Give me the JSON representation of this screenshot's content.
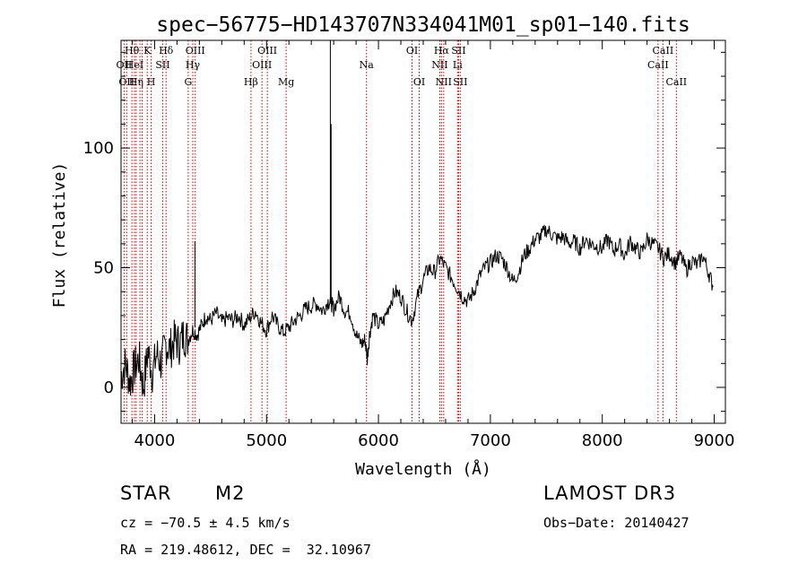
{
  "chart_data": {
    "type": "line",
    "title": "spec−56775−HD143707N334041M01_sp01−140.fits",
    "xlabel": "Wavelength (Å)",
    "ylabel": "Flux (relative)",
    "xlim": [
      3700,
      9100
    ],
    "ylim": [
      -15,
      145
    ],
    "xticks": [
      4000,
      5000,
      6000,
      7000,
      8000,
      9000
    ],
    "yticks": [
      0,
      50,
      100
    ],
    "grid": false,
    "legend": "none",
    "line_color": "#000000",
    "marker_color": "#c00000",
    "series": [
      {
        "x": [
          3700,
          3740,
          3780,
          3820,
          3860,
          3900,
          3940,
          3980,
          4020,
          4060,
          4100,
          4140,
          4180,
          4220,
          4260,
          4300,
          4340,
          4380,
          4420,
          4460,
          4500,
          4550,
          4600,
          4650,
          4700,
          4750,
          4800,
          4850,
          4900,
          4950,
          5000,
          5050,
          5100,
          5150,
          5200,
          5250,
          5300,
          5350,
          5400,
          5450,
          5500,
          5550,
          5580,
          5600,
          5650,
          5700,
          5750,
          5800,
          5850,
          5880,
          5900,
          5920,
          5950,
          6000,
          6050,
          6100,
          6150,
          6200,
          6250,
          6300,
          6350,
          6400,
          6450,
          6500,
          6550,
          6600,
          6650,
          6700,
          6750,
          6800,
          6850,
          6900,
          6950,
          7000,
          7050,
          7100,
          7150,
          7200,
          7250,
          7300,
          7350,
          7400,
          7450,
          7500,
          7550,
          7600,
          7650,
          7700,
          7750,
          7800,
          7850,
          7900,
          7950,
          8000,
          8050,
          8100,
          8150,
          8200,
          8250,
          8300,
          8350,
          8400,
          8450,
          8500,
          8550,
          8600,
          8650,
          8700,
          8750,
          8800,
          8850,
          8900,
          8950,
          8990
        ],
        "y": [
          5,
          10,
          2,
          8,
          12,
          0,
          15,
          6,
          14,
          10,
          18,
          16,
          20,
          18,
          22,
          20,
          24,
          22,
          26,
          30,
          28,
          31,
          27,
          29,
          28,
          30,
          26,
          29,
          32,
          27,
          24,
          30,
          26,
          23,
          25,
          28,
          30,
          33,
          34,
          35,
          32,
          36,
          35,
          33,
          38,
          32,
          31,
          22,
          18,
          20,
          12,
          22,
          30,
          26,
          28,
          35,
          40,
          38,
          32,
          28,
          38,
          45,
          50,
          48,
          54,
          50,
          46,
          42,
          38,
          36,
          40,
          46,
          50,
          52,
          55,
          54,
          50,
          44,
          48,
          55,
          58,
          62,
          63,
          66,
          64,
          62,
          63,
          60,
          61,
          58,
          62,
          60,
          59,
          58,
          62,
          57,
          60,
          55,
          61,
          58,
          56,
          62,
          60,
          58,
          54,
          56,
          52,
          55,
          49,
          53,
          51,
          55,
          48,
          42
        ]
      }
    ],
    "line_markers": [
      {
        "wl": 3727,
        "label": "OII",
        "row": 2
      },
      {
        "wl": 3750,
        "label": "OII",
        "row": 3
      },
      {
        "wl": 3797,
        "label": "Hθ",
        "row": 1
      },
      {
        "wl": 3820,
        "label": "HeI",
        "row": 2
      },
      {
        "wl": 3835,
        "label": "Hη",
        "row": 3
      },
      {
        "wl": 3869,
        "label": "",
        "row": 0
      },
      {
        "wl": 3889,
        "label": "",
        "row": 0
      },
      {
        "wl": 3934,
        "label": "K",
        "row": 1
      },
      {
        "wl": 3969,
        "label": "H",
        "row": 3
      },
      {
        "wl": 4072,
        "label": "SII",
        "row": 2
      },
      {
        "wl": 4102,
        "label": "Hδ",
        "row": 1
      },
      {
        "wl": 4300,
        "label": "G",
        "row": 3
      },
      {
        "wl": 4341,
        "label": "Hγ",
        "row": 2
      },
      {
        "wl": 4363,
        "label": "OIII",
        "row": 1
      },
      {
        "wl": 4861,
        "label": "Hβ",
        "row": 3
      },
      {
        "wl": 4959,
        "label": "OIII",
        "row": 2
      },
      {
        "wl": 5007,
        "label": "OIII",
        "row": 1
      },
      {
        "wl": 5175,
        "label": "Mg",
        "row": 3
      },
      {
        "wl": 5893,
        "label": "Na",
        "row": 2
      },
      {
        "wl": 6300,
        "label": "OI",
        "row": 1
      },
      {
        "wl": 6364,
        "label": "OI",
        "row": 3
      },
      {
        "wl": 6548,
        "label": "NII",
        "row": 2
      },
      {
        "wl": 6563,
        "label": "Hα",
        "row": 1
      },
      {
        "wl": 6583,
        "label": "NII",
        "row": 3
      },
      {
        "wl": 6707,
        "label": "Li",
        "row": 2
      },
      {
        "wl": 6716,
        "label": "SII",
        "row": 1
      },
      {
        "wl": 6731,
        "label": "SII",
        "row": 3
      },
      {
        "wl": 8498,
        "label": "CaII",
        "row": 2
      },
      {
        "wl": 8542,
        "label": "CaII",
        "row": 1
      },
      {
        "wl": 8662,
        "label": "CaII",
        "row": 3
      }
    ]
  },
  "info": {
    "object_class": "STAR",
    "subclass": "M2",
    "survey": "LAMOST DR3",
    "redshift": "cz = −70.5 ± 4.5 km/s",
    "obs_date": "Obs−Date: 20140427",
    "coords": "RA = 219.48612, DEC =  32.10967"
  }
}
